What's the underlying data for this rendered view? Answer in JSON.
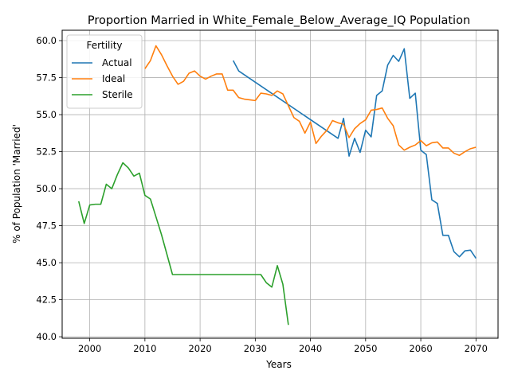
{
  "chart_data": {
    "type": "line",
    "title": "Proportion Married in White_Female_Below_Average_IQ Population",
    "xlabel": "Years",
    "ylabel": "% of Population 'Married'",
    "xlim": [
      1995,
      2074
    ],
    "ylim": [
      39.9,
      60.7
    ],
    "xticks": [
      2000,
      2010,
      2020,
      2030,
      2040,
      2050,
      2060,
      2070
    ],
    "xtick_labels": [
      "2000",
      "2010",
      "2020",
      "2030",
      "2040",
      "2050",
      "2060",
      "2070"
    ],
    "yticks": [
      40.0,
      42.5,
      45.0,
      47.5,
      50.0,
      52.5,
      55.0,
      57.5,
      60.0
    ],
    "ytick_labels": [
      "40.0",
      "42.5",
      "45.0",
      "47.5",
      "50.0",
      "52.5",
      "55.0",
      "57.5",
      "60.0"
    ],
    "grid": true,
    "legend": {
      "title": "Fertility",
      "position": "upper-left"
    },
    "series": [
      {
        "name": "Actual",
        "color": "#1f77b4",
        "x": [
          2026,
          2027,
          2045,
          2046,
          2047,
          2048,
          2049,
          2050,
          2051,
          2052,
          2053,
          2054,
          2055,
          2056,
          2057,
          2058,
          2059,
          2060,
          2061,
          2062,
          2063,
          2064,
          2065,
          2066,
          2067,
          2068,
          2069,
          2070
        ],
        "y": [
          58.65,
          57.95,
          53.4,
          54.75,
          52.2,
          53.4,
          52.45,
          53.95,
          53.5,
          56.3,
          56.6,
          58.35,
          59.0,
          58.6,
          59.45,
          56.1,
          56.45,
          52.6,
          52.3,
          49.25,
          49.0,
          46.85,
          46.85,
          45.75,
          45.4,
          45.8,
          45.85,
          45.3
        ]
      },
      {
        "name": "Ideal",
        "color": "#ff7f0e",
        "x": [
          2010,
          2011,
          2012,
          2013,
          2014,
          2015,
          2016,
          2017,
          2018,
          2019,
          2020,
          2021,
          2022,
          2023,
          2024,
          2025,
          2026,
          2027,
          2028,
          2029,
          2030,
          2031,
          2032,
          2033,
          2034,
          2035,
          2036,
          2037,
          2038,
          2039,
          2040,
          2041,
          2042,
          2043,
          2044,
          2045,
          2046,
          2047,
          2048,
          2049,
          2050,
          2051,
          2052,
          2053,
          2054,
          2055,
          2056,
          2057,
          2058,
          2059,
          2060,
          2061,
          2062,
          2063,
          2064,
          2065,
          2066,
          2067,
          2068,
          2069,
          2070
        ],
        "y": [
          58.1,
          58.65,
          59.65,
          59.05,
          58.3,
          57.6,
          57.05,
          57.25,
          57.8,
          57.95,
          57.6,
          57.4,
          57.6,
          57.75,
          57.75,
          56.65,
          56.65,
          56.15,
          56.05,
          56.0,
          55.95,
          56.45,
          56.4,
          56.3,
          56.6,
          56.4,
          55.6,
          54.8,
          54.55,
          53.75,
          54.5,
          53.05,
          53.55,
          53.95,
          54.6,
          54.45,
          54.35,
          53.45,
          54.05,
          54.4,
          54.65,
          55.3,
          55.35,
          55.45,
          54.75,
          54.25,
          52.95,
          52.6,
          52.8,
          52.95,
          53.25,
          52.9,
          53.1,
          53.15,
          52.75,
          52.75,
          52.4,
          52.25,
          52.5,
          52.7,
          52.8
        ]
      },
      {
        "name": "Sterile",
        "color": "#2ca02c",
        "x": [
          1998,
          1999,
          2000,
          2001,
          2002,
          2003,
          2004,
          2005,
          2006,
          2007,
          2008,
          2009,
          2010,
          2011,
          2012,
          2013,
          2014,
          2015,
          2016,
          2017,
          2018,
          2019,
          2020,
          2021,
          2022,
          2023,
          2024,
          2025,
          2026,
          2027,
          2028,
          2029,
          2030,
          2031,
          2032,
          2033,
          2034,
          2035,
          2036
        ],
        "y": [
          49.15,
          47.65,
          48.9,
          48.95,
          48.95,
          50.3,
          50.0,
          50.95,
          51.75,
          51.4,
          50.85,
          51.05,
          49.55,
          49.3,
          48.1,
          46.9,
          45.55,
          44.2,
          44.2,
          44.2,
          44.2,
          44.2,
          44.2,
          44.2,
          44.2,
          44.2,
          44.2,
          44.2,
          44.2,
          44.2,
          44.2,
          44.2,
          44.2,
          44.2,
          43.65,
          43.35,
          44.8,
          43.55,
          40.8
        ]
      }
    ]
  }
}
